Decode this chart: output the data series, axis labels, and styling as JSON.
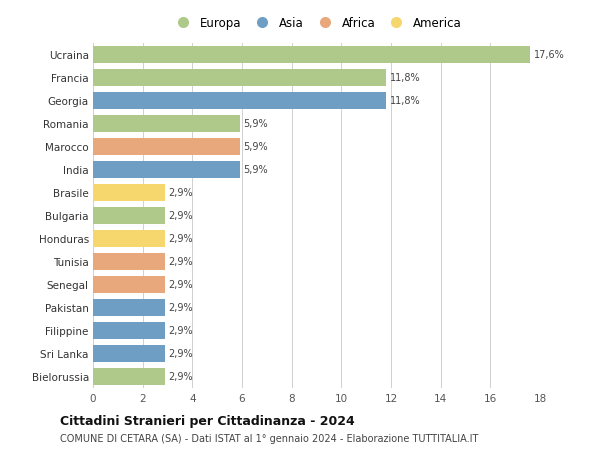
{
  "countries": [
    "Ucraina",
    "Francia",
    "Georgia",
    "Romania",
    "Marocco",
    "India",
    "Brasile",
    "Bulgaria",
    "Honduras",
    "Tunisia",
    "Senegal",
    "Pakistan",
    "Filippine",
    "Sri Lanka",
    "Bielorussia"
  ],
  "values": [
    17.6,
    11.8,
    11.8,
    5.9,
    5.9,
    5.9,
    2.9,
    2.9,
    2.9,
    2.9,
    2.9,
    2.9,
    2.9,
    2.9,
    2.9
  ],
  "labels": [
    "17,6%",
    "11,8%",
    "11,8%",
    "5,9%",
    "5,9%",
    "5,9%",
    "2,9%",
    "2,9%",
    "2,9%",
    "2,9%",
    "2,9%",
    "2,9%",
    "2,9%",
    "2,9%",
    "2,9%"
  ],
  "continents": [
    "Europa",
    "Europa",
    "Asia",
    "Europa",
    "Africa",
    "Asia",
    "America",
    "Europa",
    "America",
    "Africa",
    "Africa",
    "Asia",
    "Asia",
    "Asia",
    "Europa"
  ],
  "continent_colors": {
    "Europa": "#aec98a",
    "Asia": "#6e9ec4",
    "Africa": "#e8a87c",
    "America": "#f5d76e"
  },
  "legend_order": [
    "Europa",
    "Asia",
    "Africa",
    "America"
  ],
  "title": "Cittadini Stranieri per Cittadinanza - 2024",
  "subtitle": "COMUNE DI CETARA (SA) - Dati ISTAT al 1° gennaio 2024 - Elaborazione TUTTITALIA.IT",
  "xlim": [
    0,
    18
  ],
  "xticks": [
    0,
    2,
    4,
    6,
    8,
    10,
    12,
    14,
    16,
    18
  ],
  "background_color": "#ffffff",
  "grid_color": "#d0d0d0",
  "bar_height": 0.75
}
